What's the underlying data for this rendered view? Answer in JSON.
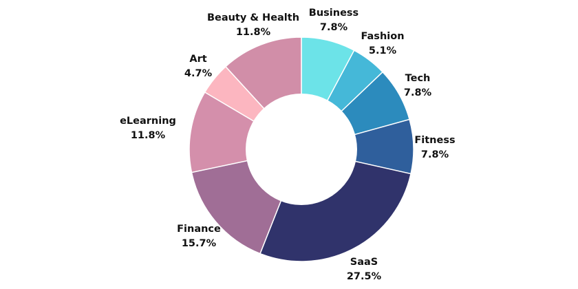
{
  "chart_data": {
    "type": "pie",
    "variant": "donut",
    "title": "",
    "legend": "none",
    "slices": [
      {
        "label": "Business",
        "value": 7.8,
        "display": "7.8%",
        "color": "#6ce3e8"
      },
      {
        "label": "Fashion",
        "value": 5.1,
        "display": "5.1%",
        "color": "#45b8d8"
      },
      {
        "label": "Tech",
        "value": 7.8,
        "display": "7.8%",
        "color": "#2c8bbd"
      },
      {
        "label": "Fitness",
        "value": 7.8,
        "display": "7.8%",
        "color": "#2f5f9c"
      },
      {
        "label": "SaaS",
        "value": 27.5,
        "display": "27.5%",
        "color": "#30336b"
      },
      {
        "label": "Finance",
        "value": 15.7,
        "display": "15.7%",
        "color": "#a06e96"
      },
      {
        "label": "eLearning",
        "value": 11.8,
        "display": "11.8%",
        "color": "#d48fab"
      },
      {
        "label": "Art",
        "value": 4.7,
        "display": "4.7%",
        "color": "#fcb6c0"
      },
      {
        "label": "Beauty & Health",
        "value": 11.8,
        "display": "11.8%",
        "color": "#d18ea8"
      }
    ]
  }
}
